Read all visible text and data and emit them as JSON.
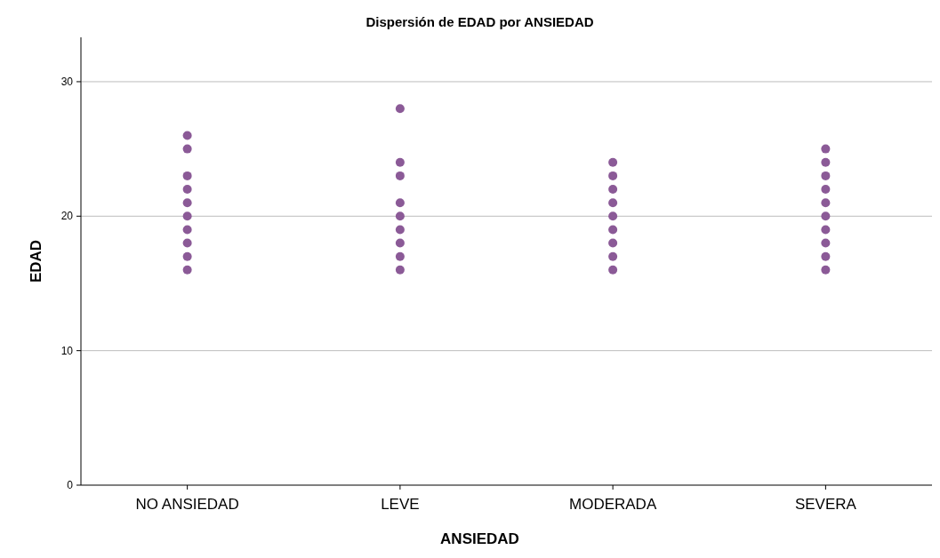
{
  "chart_data": {
    "type": "scatter",
    "title": "Dispersión de EDAD por ANSIEDAD",
    "xlabel": "ANSIEDAD",
    "ylabel": "EDAD",
    "categories": [
      "NO ANSIEDAD",
      "LEVE",
      "MODERADA",
      "SEVERA"
    ],
    "series": [
      {
        "color": "#8b5a97",
        "x": [
          "NO ANSIEDAD",
          "NO ANSIEDAD",
          "NO ANSIEDAD",
          "NO ANSIEDAD",
          "NO ANSIEDAD",
          "NO ANSIEDAD",
          "NO ANSIEDAD",
          "NO ANSIEDAD",
          "NO ANSIEDAD",
          "NO ANSIEDAD",
          "LEVE",
          "LEVE",
          "LEVE",
          "LEVE",
          "LEVE",
          "LEVE",
          "LEVE",
          "LEVE",
          "LEVE",
          "MODERADA",
          "MODERADA",
          "MODERADA",
          "MODERADA",
          "MODERADA",
          "MODERADA",
          "MODERADA",
          "MODERADA",
          "MODERADA",
          "SEVERA",
          "SEVERA",
          "SEVERA",
          "SEVERA",
          "SEVERA",
          "SEVERA",
          "SEVERA",
          "SEVERA",
          "SEVERA",
          "SEVERA"
        ],
        "values": [
          26,
          25,
          23,
          22,
          21,
          20,
          19,
          18,
          17,
          16,
          28,
          24,
          23,
          21,
          20,
          19,
          18,
          17,
          16,
          24,
          23,
          22,
          21,
          20,
          19,
          18,
          17,
          16,
          25,
          24,
          23,
          22,
          21,
          20,
          19,
          18,
          17,
          16
        ]
      }
    ],
    "ylim": [
      0,
      33.3
    ],
    "yticks": [
      0,
      10,
      20,
      30
    ],
    "grid": "y",
    "marker": "circle"
  }
}
